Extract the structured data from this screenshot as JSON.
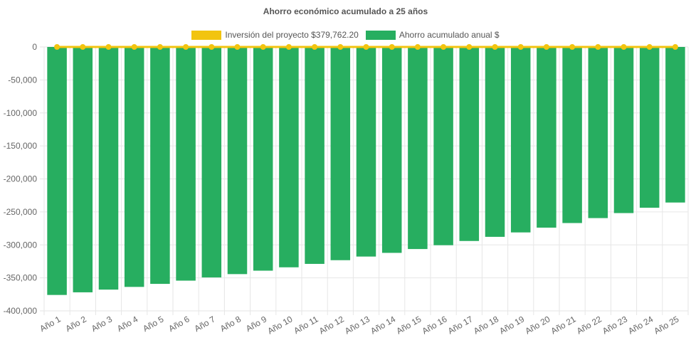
{
  "chart_data": {
    "type": "bar",
    "title": "Ahorro económico acumulado a 25 años",
    "categories": [
      "Año 1",
      "Año 2",
      "Año 3",
      "Año 4",
      "Año 5",
      "Año 6",
      "Año 7",
      "Año 8",
      "Año 9",
      "Año 10",
      "Año 11",
      "Año 12",
      "Año 13",
      "Año 14",
      "Año 15",
      "Año 16",
      "Año 17",
      "Año 18",
      "Año 19",
      "Año 20",
      "Año 21",
      "Año 22",
      "Año 23",
      "Año 24",
      "Año 25"
    ],
    "series": [
      {
        "name": "Inversión del proyecto $379,762.20",
        "type": "line",
        "color": "#f2c40f",
        "values": [
          0,
          0,
          0,
          0,
          0,
          0,
          0,
          0,
          0,
          0,
          0,
          0,
          0,
          0,
          0,
          0,
          0,
          0,
          0,
          0,
          0,
          0,
          0,
          0,
          0
        ]
      },
      {
        "name": "Ahorro acumulado anual $",
        "type": "bar",
        "color": "#27ae60",
        "values": [
          -375900,
          -371900,
          -367800,
          -363700,
          -359100,
          -354200,
          -349300,
          -344300,
          -339100,
          -334000,
          -328800,
          -323200,
          -317700,
          -312100,
          -306300,
          -300500,
          -294100,
          -287800,
          -281100,
          -273900,
          -266900,
          -259400,
          -251800,
          -243700,
          -235800
        ]
      }
    ],
    "y_ticks": [
      "0",
      "-50,000",
      "-100,000",
      "-150,000",
      "-200,000",
      "-250,000",
      "-300,000",
      "-350,000",
      "-400,000"
    ],
    "ylim": [
      -400000,
      0
    ],
    "xlabel": "",
    "ylabel": "",
    "grid": true,
    "legend_position": "top-center"
  }
}
